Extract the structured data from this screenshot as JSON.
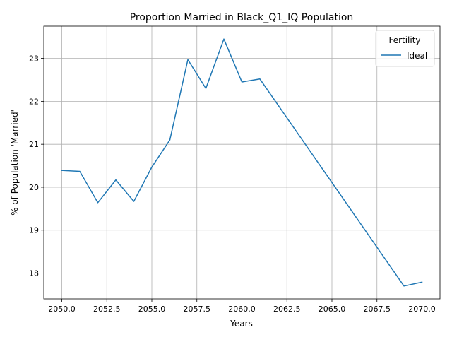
{
  "chart_data": {
    "type": "line",
    "title": "Proportion Married in Black_Q1_IQ Population",
    "xlabel": "Years",
    "ylabel": "% of Population 'Married'",
    "xlim": [
      2049.0,
      2071.0
    ],
    "ylim": [
      17.4,
      23.75
    ],
    "x_ticks": [
      2050.0,
      2052.5,
      2055.0,
      2057.5,
      2060.0,
      2062.5,
      2065.0,
      2067.5,
      2070.0
    ],
    "x_tick_labels": [
      "2050.0",
      "2052.5",
      "2055.0",
      "2057.5",
      "2060.0",
      "2062.5",
      "2065.0",
      "2067.5",
      "2070.0"
    ],
    "y_ticks": [
      18,
      19,
      20,
      21,
      22,
      23
    ],
    "y_tick_labels": [
      "18",
      "19",
      "20",
      "21",
      "22",
      "23"
    ],
    "grid": true,
    "legend": {
      "title": "Fertility",
      "placement": "top-right"
    },
    "series": [
      {
        "name": "Ideal",
        "color": "#1f77b4",
        "x": [
          2050,
          2051,
          2052,
          2053,
          2054,
          2055,
          2056,
          2057,
          2058,
          2059,
          2060,
          2061,
          2069,
          2070
        ],
        "y": [
          20.39,
          20.37,
          19.64,
          20.17,
          19.67,
          20.47,
          21.1,
          22.97,
          22.3,
          23.45,
          22.45,
          22.52,
          17.7,
          17.79
        ]
      }
    ]
  }
}
